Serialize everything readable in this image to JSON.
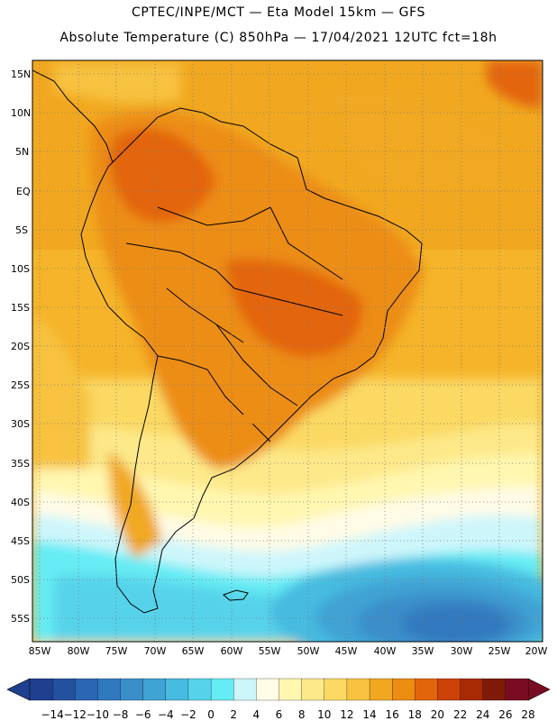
{
  "title": {
    "line1": "CPTEC/INPE/MCT —  Eta Model 15km — GFS",
    "line2": "Absolute Temperature (C) 850hPa — 17/04/2021 12UTC fct=18h"
  },
  "map": {
    "lat_labels": [
      "15N",
      "10N",
      "5N",
      "EQ",
      "5S",
      "10S",
      "15S",
      "20S",
      "25S",
      "30S",
      "35S",
      "40S",
      "45S",
      "50S",
      "55S"
    ],
    "lon_labels": [
      "85W",
      "80W",
      "75W",
      "70W",
      "65W",
      "60W",
      "55W",
      "50W",
      "45W",
      "40W",
      "35W",
      "30W",
      "25W",
      "20W"
    ]
  },
  "colorbar": {
    "labels": [
      "-14",
      "-12",
      "-10",
      "-8",
      "-6",
      "-4",
      "-2",
      "0",
      "2",
      "4",
      "6",
      "8",
      "10",
      "12",
      "14",
      "16",
      "18",
      "20",
      "22",
      "24",
      "26",
      "28"
    ],
    "colors": [
      "#1f3f8f",
      "#23519f",
      "#2a66b3",
      "#3179bf",
      "#3a8ec9",
      "#3fa3d4",
      "#47bbe0",
      "#56d3ea",
      "#66ecf4",
      "#cdf6fb",
      "#fffbe6",
      "#fff7b0",
      "#fde98a",
      "#fbd963",
      "#f7c23f",
      "#f1a820",
      "#ec8d12",
      "#e3650b",
      "#cc4107",
      "#a82a05",
      "#7f1a08",
      "#7a0c22"
    ]
  },
  "chart_data": {
    "type": "heatmap",
    "title": "Absolute Temperature (C) 850hPa",
    "variable": "temperature",
    "units": "C",
    "level": "850hPa",
    "model": "Eta Model 15km",
    "driver": "GFS",
    "source": "CPTEC/INPE/MCT",
    "valid": "17/04/2021 12UTC",
    "forecast": "fct=18h",
    "lat_range": [
      "58S",
      "17N"
    ],
    "lon_range": [
      "86W",
      "19W"
    ],
    "colorscale_levels": [
      -14,
      -12,
      -10,
      -8,
      -6,
      -4,
      -2,
      0,
      2,
      4,
      6,
      8,
      10,
      12,
      14,
      16,
      18,
      20,
      22,
      24,
      26,
      28
    ],
    "regions": [
      {
        "name": "Amazon / northern South America",
        "approx_value_C": "18-20"
      },
      {
        "name": "Central Brazil",
        "approx_value_C": "20-22"
      },
      {
        "name": "Northeast Atlantic off Brazil",
        "approx_value_C": "16-18"
      },
      {
        "name": "Caribbean (north-east corner)",
        "approx_value_C": "20-22"
      },
      {
        "name": "Argentina / Uruguay",
        "approx_value_C": "12-16"
      },
      {
        "name": "Southern Argentina",
        "approx_value_C": "6-10"
      },
      {
        "name": "Patagonia / Drake Passage",
        "approx_value_C": "-2 to 4"
      },
      {
        "name": "South Atlantic (45-55S, 20-40W)",
        "approx_value_C": "-10 to -6"
      }
    ]
  }
}
